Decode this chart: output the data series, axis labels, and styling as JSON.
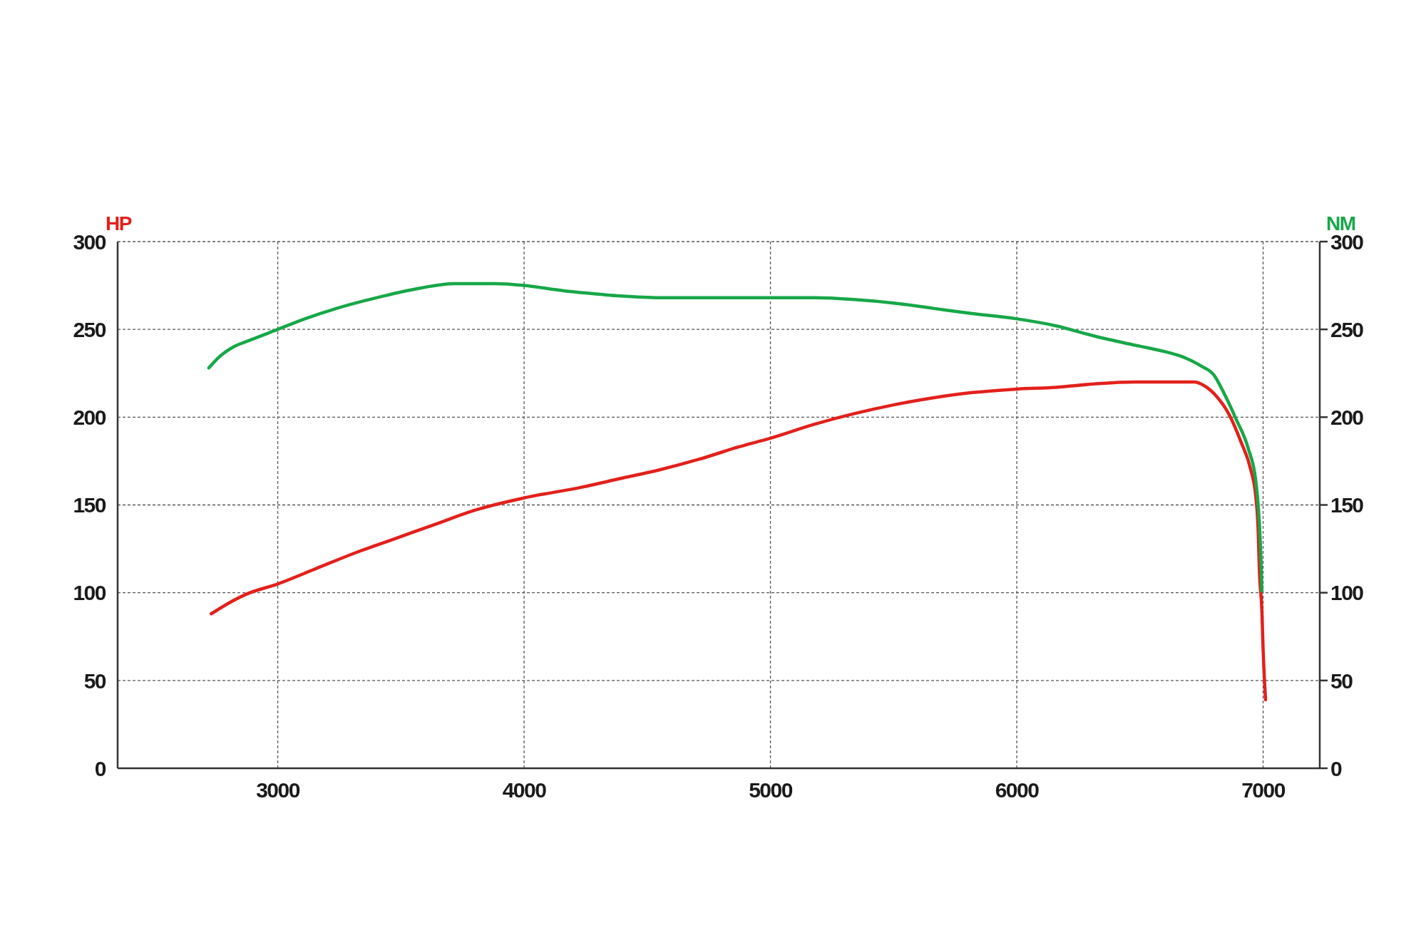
{
  "chart_data": {
    "type": "line",
    "xlim": [
      2350,
      7230
    ],
    "xticks": [
      3000,
      4000,
      5000,
      6000,
      7000
    ],
    "ylim": [
      0,
      300
    ],
    "yticks": [
      0,
      50,
      100,
      150,
      200,
      250,
      300
    ],
    "y2lim": [
      0,
      300
    ],
    "y2ticks": [
      0,
      50,
      100,
      150,
      200,
      250,
      300
    ],
    "ylabel": "HP",
    "y2label": "NM",
    "grid": true,
    "series": [
      {
        "color": "#e3201b",
        "x": [
          2730,
          2800,
          2870,
          3000,
          3160,
          3320,
          3480,
          3640,
          3800,
          4000,
          4230,
          4390,
          4550,
          4710,
          4870,
          5000,
          5180,
          5340,
          5500,
          5660,
          5820,
          6000,
          6160,
          6320,
          6480,
          6640,
          6720,
          6760,
          6810,
          6860,
          6910,
          6950,
          6970,
          6980,
          6985,
          6995,
          7000,
          7010
        ],
        "values": [
          88,
          94,
          99,
          105,
          114,
          123,
          131,
          139,
          147,
          154,
          160,
          165,
          170,
          176,
          183,
          188,
          196,
          202,
          207,
          211,
          214,
          216,
          217,
          219,
          220,
          220,
          220,
          218,
          212,
          202,
          186,
          170,
          155,
          135,
          112,
          90,
          68,
          39
        ]
      },
      {
        "color": "#17a748",
        "axis": "y2",
        "x": [
          2720,
          2760,
          2820,
          2890,
          3000,
          3110,
          3240,
          3400,
          3560,
          3720,
          3800,
          3880,
          4000,
          4160,
          4230,
          4390,
          4550,
          4710,
          4870,
          5000,
          5180,
          5340,
          5500,
          5660,
          5820,
          6000,
          6160,
          6320,
          6480,
          6610,
          6680,
          6750,
          6800,
          6840,
          6890,
          6940,
          6970,
          6980,
          6990,
          6995
        ],
        "values": [
          228,
          234,
          240,
          244,
          250,
          256,
          262,
          268,
          273,
          276,
          276,
          276,
          275,
          272,
          271,
          269,
          268,
          268,
          268,
          268,
          268,
          267,
          265,
          262,
          259,
          256,
          252,
          246,
          241,
          237,
          234,
          229,
          224,
          214,
          199,
          182,
          164,
          150,
          124,
          101
        ]
      }
    ]
  }
}
